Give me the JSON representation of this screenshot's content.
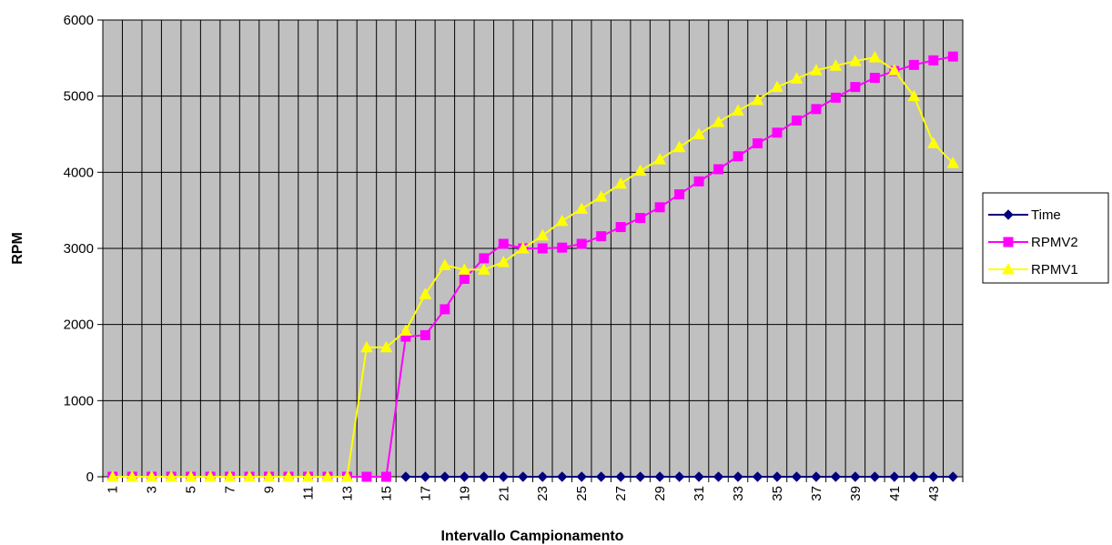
{
  "chart_data": {
    "type": "line",
    "title": "",
    "xlabel": "Intervallo Campionamento",
    "ylabel": "RPM",
    "ylim": [
      0,
      6000
    ],
    "yticks": [
      0,
      1000,
      2000,
      3000,
      4000,
      5000,
      6000
    ],
    "categories": [
      "1",
      "2",
      "3",
      "4",
      "5",
      "6",
      "7",
      "8",
      "9",
      "10",
      "11",
      "12",
      "13",
      "14",
      "15",
      "16",
      "17",
      "18",
      "19",
      "20",
      "21",
      "22",
      "23",
      "24",
      "25",
      "26",
      "27",
      "28",
      "29",
      "30",
      "31",
      "32",
      "33",
      "34",
      "35",
      "36",
      "37",
      "38",
      "39",
      "40",
      "41",
      "42",
      "43",
      "44"
    ],
    "xtick_labels": [
      "1",
      "3",
      "5",
      "7",
      "9",
      "11",
      "13",
      "15",
      "17",
      "19",
      "21",
      "23",
      "25",
      "27",
      "29",
      "31",
      "33",
      "35",
      "37",
      "39",
      "41",
      "43"
    ],
    "grid": true,
    "plot_background": "#c0c0c0",
    "legend": "right",
    "series": [
      {
        "name": "Time",
        "color": "#000080",
        "marker": "diamond",
        "values": [
          null,
          null,
          null,
          null,
          null,
          null,
          null,
          null,
          null,
          null,
          null,
          null,
          null,
          null,
          null,
          0,
          0,
          0,
          0,
          0,
          0,
          0,
          0,
          0,
          0,
          0,
          0,
          0,
          0,
          0,
          0,
          0,
          0,
          0,
          0,
          0,
          0,
          0,
          0,
          0,
          0,
          0,
          0,
          0
        ]
      },
      {
        "name": "RPMV2",
        "color": "#ff00ff",
        "marker": "square",
        "values": [
          0,
          0,
          0,
          0,
          0,
          0,
          0,
          0,
          0,
          0,
          0,
          0,
          0,
          0,
          0,
          1840,
          1860,
          2200,
          2600,
          2870,
          3060,
          3000,
          3000,
          3010,
          3060,
          3160,
          3280,
          3400,
          3540,
          3710,
          3880,
          4040,
          4210,
          4380,
          4520,
          4680,
          4830,
          4980,
          5120,
          5240,
          5330,
          5410,
          5470,
          5520
        ]
      },
      {
        "name": "RPMV1",
        "color": "#ffff00",
        "marker": "triangle",
        "values": [
          0,
          0,
          0,
          0,
          0,
          0,
          0,
          0,
          0,
          0,
          0,
          0,
          0,
          1700,
          1700,
          1920,
          2400,
          2780,
          2720,
          2720,
          2820,
          3000,
          3170,
          3360,
          3520,
          3680,
          3850,
          4020,
          4170,
          4330,
          4500,
          4660,
          4810,
          4950,
          5120,
          5230,
          5340,
          5400,
          5460,
          5510,
          5340,
          5000,
          4380,
          4120
        ]
      }
    ]
  }
}
